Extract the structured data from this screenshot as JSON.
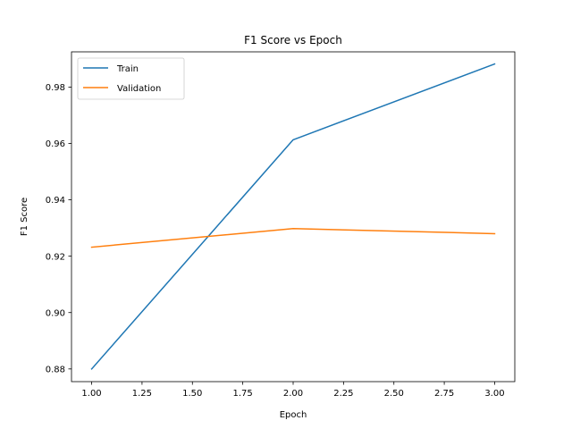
{
  "chart_data": {
    "type": "line",
    "title": "F1 Score vs Epoch",
    "xlabel": "Epoch",
    "ylabel": "F1 Score",
    "xlim": [
      0.9,
      3.1
    ],
    "ylim": [
      0.8755,
      0.9925
    ],
    "xticks": [
      1.0,
      1.25,
      1.5,
      1.75,
      2.0,
      2.25,
      2.5,
      2.75,
      3.0
    ],
    "xtick_labels": [
      "1.00",
      "1.25",
      "1.50",
      "1.75",
      "2.00",
      "2.25",
      "2.50",
      "2.75",
      "3.00"
    ],
    "yticks": [
      0.88,
      0.9,
      0.92,
      0.94,
      0.96,
      0.98
    ],
    "ytick_labels": [
      "0.88",
      "0.90",
      "0.92",
      "0.94",
      "0.96",
      "0.98"
    ],
    "grid": false,
    "legend_position": "top-left",
    "x": [
      1,
      2,
      3
    ],
    "series": [
      {
        "name": "Train",
        "color": "#1f77b4",
        "values": [
          0.88,
          0.9613,
          0.9882
        ]
      },
      {
        "name": "Validation",
        "color": "#ff7f0e",
        "values": [
          0.9232,
          0.9298,
          0.928
        ]
      }
    ]
  }
}
